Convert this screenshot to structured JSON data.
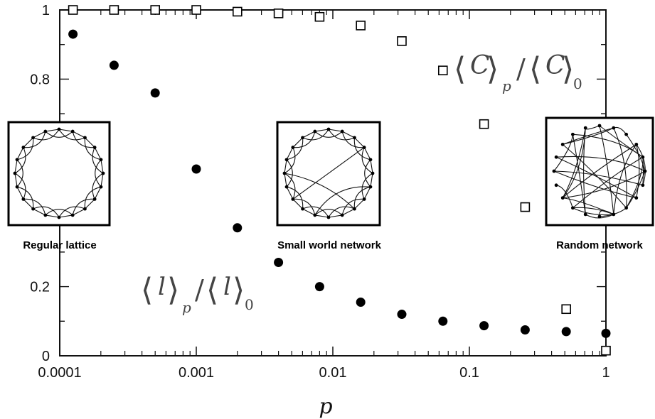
{
  "chart_data": {
    "type": "scatter",
    "xlabel": "p",
    "x_scale": "log",
    "xlim": [
      0.0001,
      1
    ],
    "ylim": [
      0,
      1
    ],
    "x_ticks": [
      {
        "value": 0.0001,
        "label": "0.0001"
      },
      {
        "value": 0.001,
        "label": "0.001"
      },
      {
        "value": 0.01,
        "label": "0.01"
      },
      {
        "value": 0.1,
        "label": "0.1"
      },
      {
        "value": 1,
        "label": "1"
      }
    ],
    "y_ticks": [
      {
        "value": 0,
        "label": "0"
      },
      {
        "value": 0.2,
        "label": "0.2"
      },
      {
        "value": 0.8,
        "label": "0.8"
      },
      {
        "value": 1,
        "label": "1"
      }
    ],
    "series": [
      {
        "marker": "open-square",
        "x": [
          0.000125,
          0.00025,
          0.0005,
          0.001,
          0.002,
          0.004,
          0.008,
          0.016,
          0.032,
          0.064,
          0.128,
          0.256,
          0.512,
          1.0
        ],
        "y": [
          1.0,
          1.0,
          1.0,
          1.0,
          0.995,
          0.99,
          0.98,
          0.955,
          0.91,
          0.825,
          0.67,
          0.43,
          0.135,
          0.015
        ]
      },
      {
        "marker": "filled-circle",
        "x": [
          0.000125,
          0.00025,
          0.0005,
          0.001,
          0.002,
          0.004,
          0.008,
          0.016,
          0.032,
          0.064,
          0.128,
          0.256,
          0.512,
          1.0
        ],
        "y": [
          0.93,
          0.84,
          0.76,
          0.54,
          0.37,
          0.27,
          0.2,
          0.155,
          0.12,
          0.1,
          0.087,
          0.075,
          0.07,
          0.065
        ]
      }
    ],
    "annotations": {
      "C_main": "C",
      "C_sub_p": "p",
      "C_sub_0": "0",
      "l_main": "l",
      "l_sub_p": "p",
      "l_sub_0": "0"
    },
    "insets": [
      {
        "label": "Regular lattice"
      },
      {
        "label": "Small world network"
      },
      {
        "label": "Random network"
      }
    ],
    "colors": {
      "axis": "#111111",
      "marker": "#000000"
    }
  }
}
